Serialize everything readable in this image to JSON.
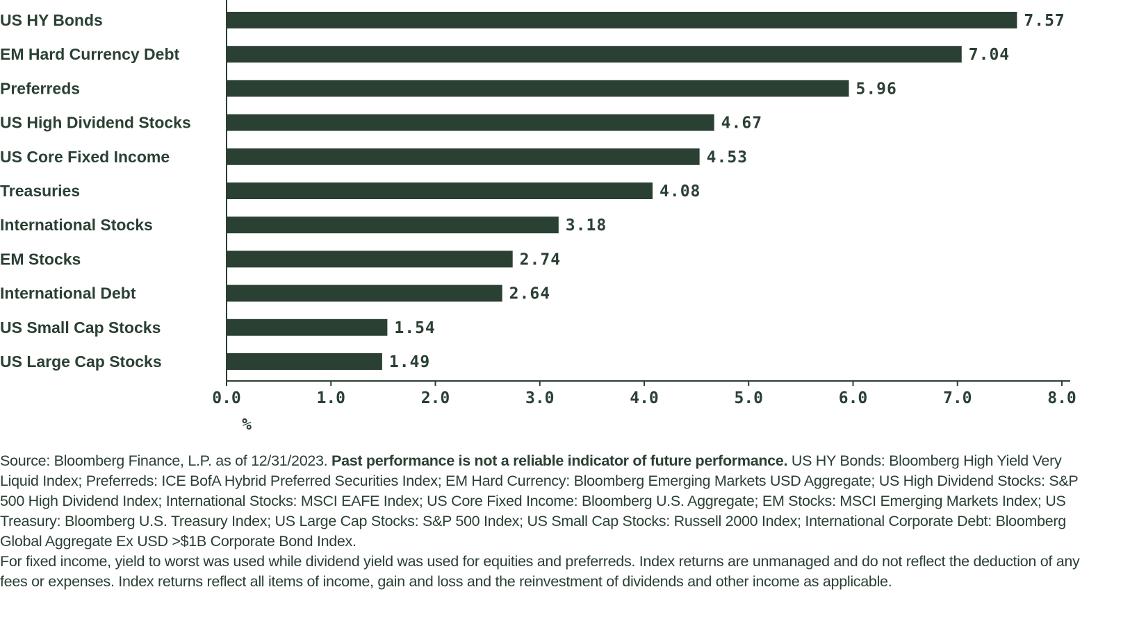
{
  "chart_data": {
    "type": "bar",
    "orientation": "horizontal",
    "categories": [
      "US HY Bonds",
      "EM Hard Currency Debt",
      "Preferreds",
      "US High Dividend Stocks",
      "US Core Fixed Income",
      "Treasuries",
      "International Stocks",
      "EM Stocks",
      "International  Debt",
      "US Small Cap Stocks",
      "US Large Cap Stocks"
    ],
    "values": [
      7.57,
      7.04,
      5.96,
      4.67,
      4.53,
      4.08,
      3.18,
      2.74,
      2.64,
      1.54,
      1.49
    ],
    "value_labels": [
      "7.57",
      "7.04",
      "5.96",
      "4.67",
      "4.53",
      "4.08",
      "3.18",
      "2.74",
      "2.64",
      "1.54",
      "1.49"
    ],
    "xlabel": "%",
    "xlim": [
      0,
      8
    ],
    "xticks": [
      "0.0",
      "1.0",
      "2.0",
      "3.0",
      "4.0",
      "5.0",
      "6.0",
      "7.0",
      "8.0"
    ],
    "grid": false,
    "bar_color": "#2a4033"
  },
  "footnote": {
    "source": "Source: Bloomberg Finance, L.P. as of 12/31/2023. ",
    "disclaimer": "Past performance is not a reliable indicator of future performance.",
    "details": " US HY Bonds: Bloomberg High Yield Very Liquid Index; Preferreds: ICE BofA Hybrid Preferred Securities Index; EM Hard Currency: Bloomberg Emerging Markets USD Aggregate; US High Dividend Stocks: S&P 500 High Dividend Index; International Stocks: MSCI EAFE Index; US Core Fixed Income: Bloomberg U.S. Aggregate; EM Stocks: MSCI Emerging Markets Index; US Treasury: Bloomberg U.S. Treasury Index; US Large Cap Stocks: S&P 500 Index; US Small Cap Stocks: Russell 2000 Index; International Corporate Debt: Bloomberg Global Aggregate Ex USD >$1B Corporate Bond Index.",
    "methodology": "For fixed income, yield to worst was used while dividend yield was used for equities and preferreds. Index returns are unmanaged and do not reflect the deduction of any fees or expenses. Index returns reflect all items of income, gain and loss and the reinvestment of dividends and other income as applicable."
  }
}
